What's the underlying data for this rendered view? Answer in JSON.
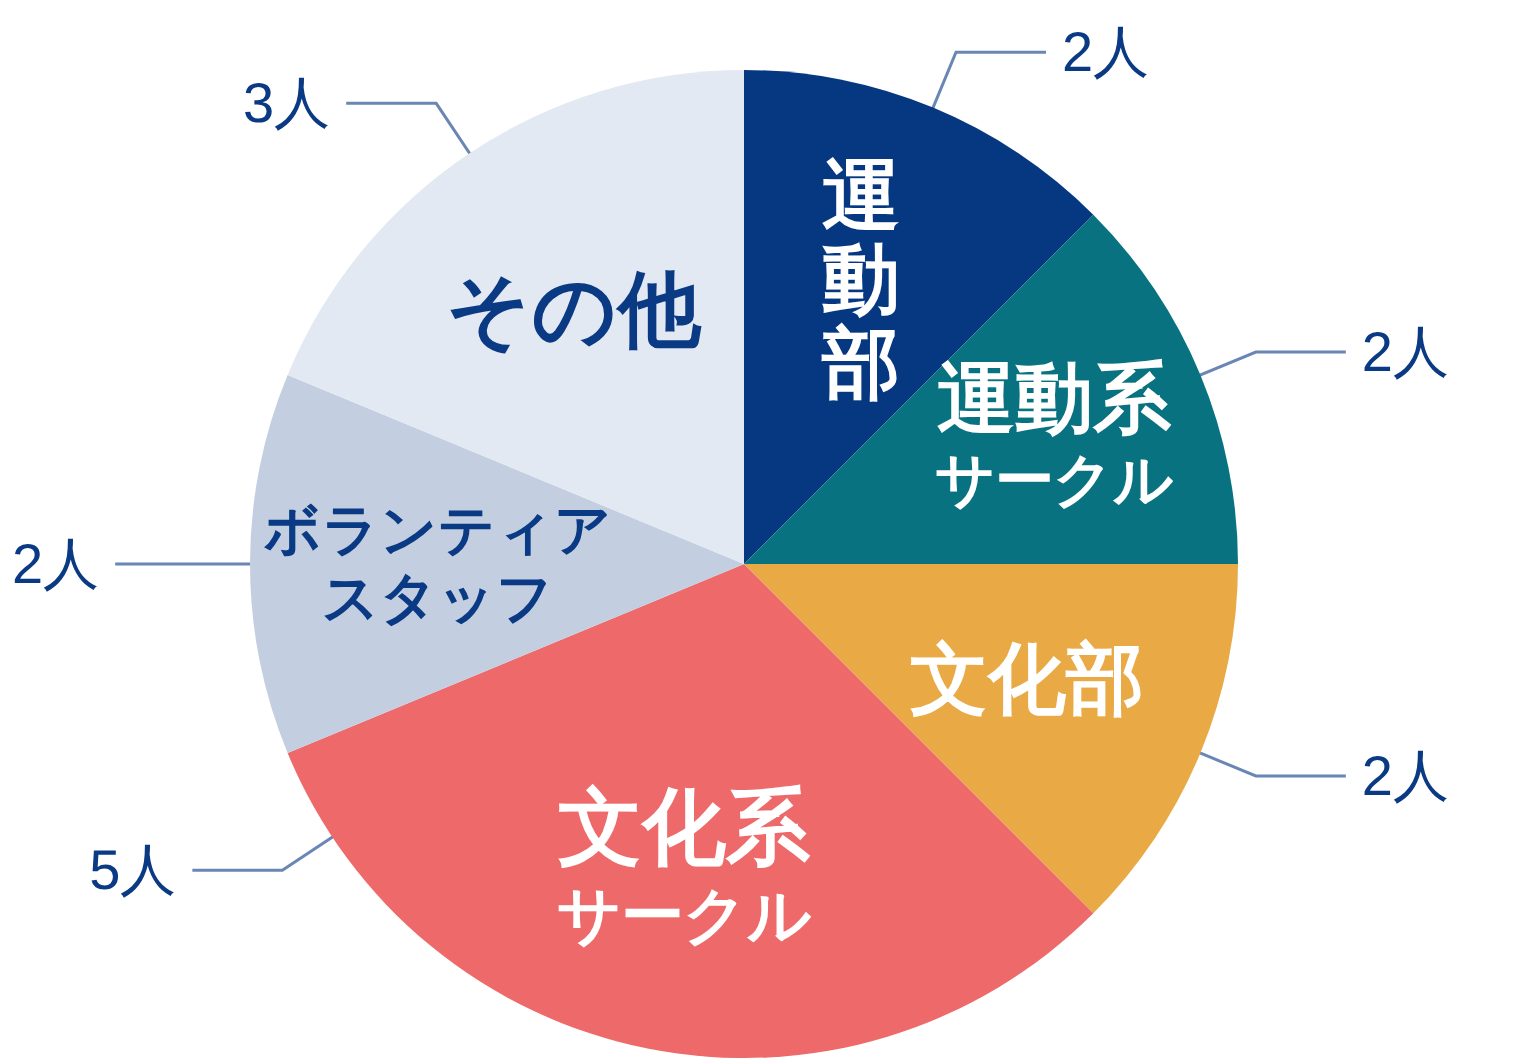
{
  "chart_data": {
    "type": "pie",
    "categories": [
      "運動部",
      "運動系サークル",
      "文化部",
      "文化系サークル",
      "ボランティアスタッフ",
      "その他"
    ],
    "values": [
      2,
      2,
      2,
      5,
      2,
      3
    ],
    "colors": [
      "#063882",
      "#087280",
      "#e9a944",
      "#ee6a6a",
      "#c3cfe1",
      "#e3e9f2"
    ],
    "value_labels": [
      "2人",
      "2人",
      "2人",
      "5人",
      "2人",
      "3人"
    ]
  }
}
